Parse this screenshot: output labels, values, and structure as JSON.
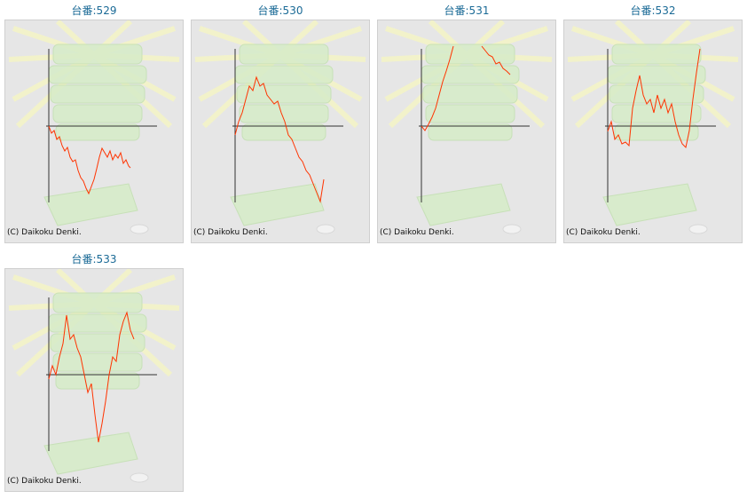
{
  "chart_data": [
    {
      "type": "line",
      "title": "台番:529",
      "copyright": "(C) Daikoku Denki.",
      "x": [
        0,
        3,
        6,
        9,
        12,
        15,
        18,
        21,
        24,
        27,
        30,
        33,
        36,
        39,
        42,
        45,
        48,
        51,
        54,
        57,
        60,
        63,
        66,
        69,
        72,
        75,
        78,
        81,
        84,
        87,
        90,
        92
      ],
      "series": [
        {
          "color": "#ff3300",
          "values": [
            0,
            -8,
            -5,
            -15,
            -12,
            -22,
            -28,
            -24,
            -35,
            -40,
            -38,
            -50,
            -58,
            -62,
            -70,
            -76,
            -68,
            -60,
            -48,
            -35,
            -25,
            -30,
            -35,
            -28,
            -38,
            -32,
            -36,
            -30,
            -42,
            -38,
            -45,
            -47
          ]
        }
      ],
      "xlim": [
        0,
        125
      ],
      "ylim": [
        -90,
        90
      ]
    },
    {
      "type": "line",
      "title": "台番:530",
      "copyright": "(C) Daikoku Denki.",
      "x": [
        0,
        4,
        8,
        12,
        16,
        20,
        24,
        28,
        32,
        36,
        40,
        44,
        48,
        52,
        56,
        60,
        64,
        68,
        72,
        76,
        80,
        84,
        88,
        92,
        96,
        100
      ],
      "series": [
        {
          "color": "#ff3300",
          "values": [
            -10,
            5,
            15,
            30,
            45,
            40,
            55,
            45,
            48,
            35,
            30,
            25,
            28,
            15,
            5,
            -10,
            -15,
            -25,
            -35,
            -40,
            -50,
            -55,
            -65,
            -75,
            -85,
            -60
          ]
        }
      ],
      "xlim": [
        0,
        125
      ],
      "ylim": [
        -90,
        90
      ]
    },
    {
      "type": "line",
      "title": "台番:531",
      "copyright": "(C) Daikoku Denki.",
      "x": [
        0,
        4,
        8,
        12,
        16,
        20,
        24,
        28,
        32,
        36,
        40,
        44,
        48,
        52,
        56,
        60,
        64,
        68,
        72,
        76,
        80,
        84,
        88,
        92,
        96,
        100
      ],
      "series": [
        {
          "color": "#ff3300",
          "values": [
            0,
            -5,
            2,
            10,
            20,
            35,
            50,
            62,
            75,
            90,
            null,
            null,
            null,
            null,
            null,
            null,
            null,
            90,
            85,
            80,
            78,
            70,
            72,
            65,
            62,
            58
          ]
        }
      ],
      "xlim": [
        0,
        125
      ],
      "ylim": [
        -90,
        90
      ]
    },
    {
      "type": "line",
      "title": "台番:532",
      "copyright": "(C) Daikoku Denki.",
      "x": [
        0,
        4,
        8,
        12,
        16,
        20,
        24,
        28,
        32,
        36,
        40,
        44,
        48,
        52,
        56,
        60,
        64,
        68,
        72,
        76,
        80,
        84,
        88,
        92,
        96,
        100,
        104
      ],
      "series": [
        {
          "color": "#ff3300",
          "values": [
            -6,
            5,
            -15,
            -10,
            -20,
            -18,
            -22,
            20,
            40,
            57,
            35,
            25,
            30,
            15,
            35,
            20,
            30,
            15,
            25,
            5,
            -10,
            -20,
            -24,
            -5,
            30,
            60,
            87
          ]
        }
      ],
      "xlim": [
        0,
        125
      ],
      "ylim": [
        -90,
        90
      ]
    },
    {
      "type": "line",
      "title": "台番:533",
      "copyright": "(C) Daikoku Denki.",
      "x": [
        0,
        4,
        8,
        12,
        16,
        20,
        24,
        28,
        32,
        36,
        40,
        44,
        48,
        52,
        56,
        60,
        64,
        68,
        72,
        76,
        80,
        84,
        88,
        92,
        96
      ],
      "series": [
        {
          "color": "#ff3300",
          "values": [
            -5,
            10,
            0,
            20,
            35,
            67,
            40,
            45,
            30,
            20,
            0,
            -20,
            -10,
            -45,
            -76,
            -55,
            -30,
            0,
            20,
            15,
            45,
            60,
            70,
            50,
            40
          ]
        }
      ],
      "xlim": [
        0,
        125
      ],
      "ylim": [
        -90,
        90
      ]
    }
  ]
}
